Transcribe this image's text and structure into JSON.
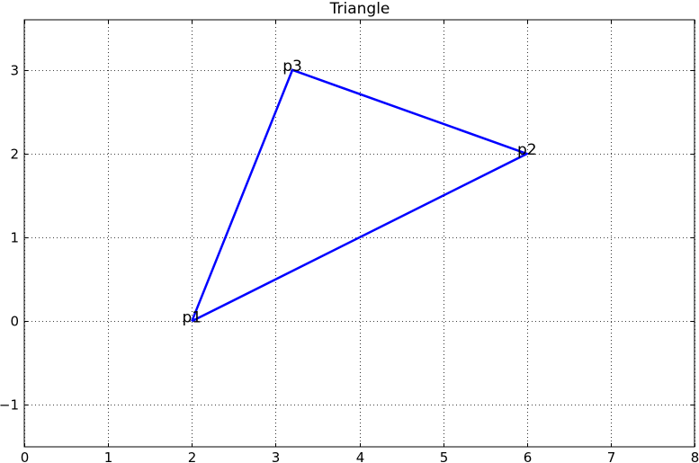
{
  "chart_data": {
    "type": "line",
    "title": "Triangle",
    "xlabel": "",
    "ylabel": "",
    "xlim": [
      0,
      8
    ],
    "ylim": [
      -1.5,
      3.6
    ],
    "xticks": [
      0,
      1,
      2,
      3,
      4,
      5,
      6,
      7,
      8
    ],
    "yticks": [
      -1,
      0,
      1,
      2,
      3
    ],
    "xtick_labels": [
      "0",
      "1",
      "2",
      "3",
      "4",
      "5",
      "6",
      "7",
      "8"
    ],
    "ytick_labels": [
      "−1",
      "0",
      "1",
      "2",
      "3"
    ],
    "grid": true,
    "series": [
      {
        "color": "#0000ff",
        "x": [
          2.0,
          6.0,
          3.2,
          2.0
        ],
        "y": [
          0,
          2,
          3,
          0
        ]
      }
    ],
    "annotations": [
      {
        "text": "p1",
        "x": 2.0,
        "y": 0
      },
      {
        "text": "p2",
        "x": 6.0,
        "y": 2
      },
      {
        "text": "p3",
        "x": 3.2,
        "y": 3
      }
    ]
  }
}
